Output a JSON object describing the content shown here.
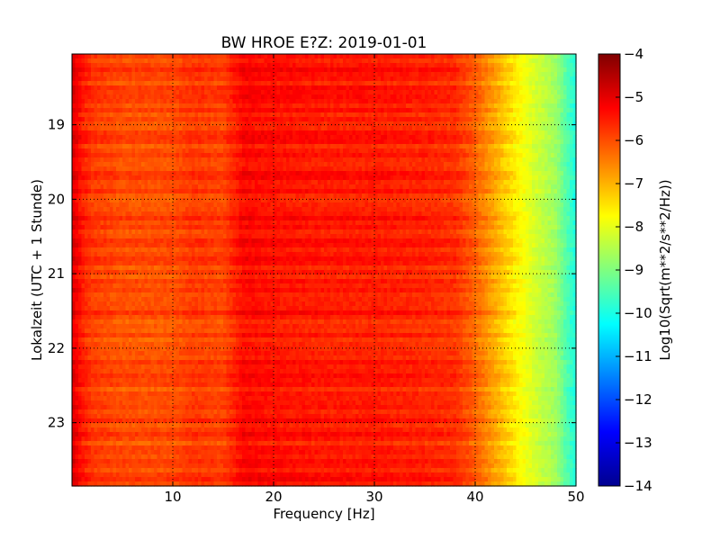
{
  "chart_data": {
    "type": "heatmap",
    "title": "BW HROE E?Z: 2019-01-01",
    "xlabel": "Frequency [Hz]",
    "ylabel": "Lokalzeit (UTC + 1 Stunde)",
    "xlim": [
      0,
      50
    ],
    "ylim": [
      18.05,
      23.85
    ],
    "x_ticks": [
      10,
      20,
      30,
      40,
      50
    ],
    "x_tick_labels": [
      "10",
      "20",
      "30",
      "40",
      "50"
    ],
    "y_ticks": [
      19,
      20,
      21,
      22,
      23
    ],
    "y_tick_labels": [
      "19",
      "20",
      "21",
      "22",
      "23"
    ],
    "grid": true,
    "colormap": "jet",
    "colorbar": {
      "label": "Log10(Sqrt(m**2/s**2/Hz))",
      "range": [
        -14,
        -4
      ],
      "ticks": [
        -4,
        -5,
        -6,
        -7,
        -8,
        -9,
        -10,
        -11,
        -12,
        -13,
        -14
      ],
      "tick_labels": [
        "−4",
        "−5",
        "−6",
        "−7",
        "−8",
        "−9",
        "−10",
        "−11",
        "−12",
        "−13",
        "−14"
      ]
    },
    "spectrum_profile": {
      "frequency_hz": [
        0,
        0.5,
        1,
        2,
        5,
        10,
        12,
        15,
        17,
        20,
        25,
        30,
        35,
        38,
        40,
        42,
        44,
        46,
        48,
        49,
        50
      ],
      "level": [
        -4.9,
        -5.2,
        -5.5,
        -5.8,
        -6.0,
        -6.0,
        -5.8,
        -5.9,
        -5.3,
        -5.4,
        -5.5,
        -5.5,
        -5.6,
        -5.7,
        -6.2,
        -6.9,
        -7.6,
        -8.2,
        -8.7,
        -9.4,
        -10.0
      ]
    }
  }
}
